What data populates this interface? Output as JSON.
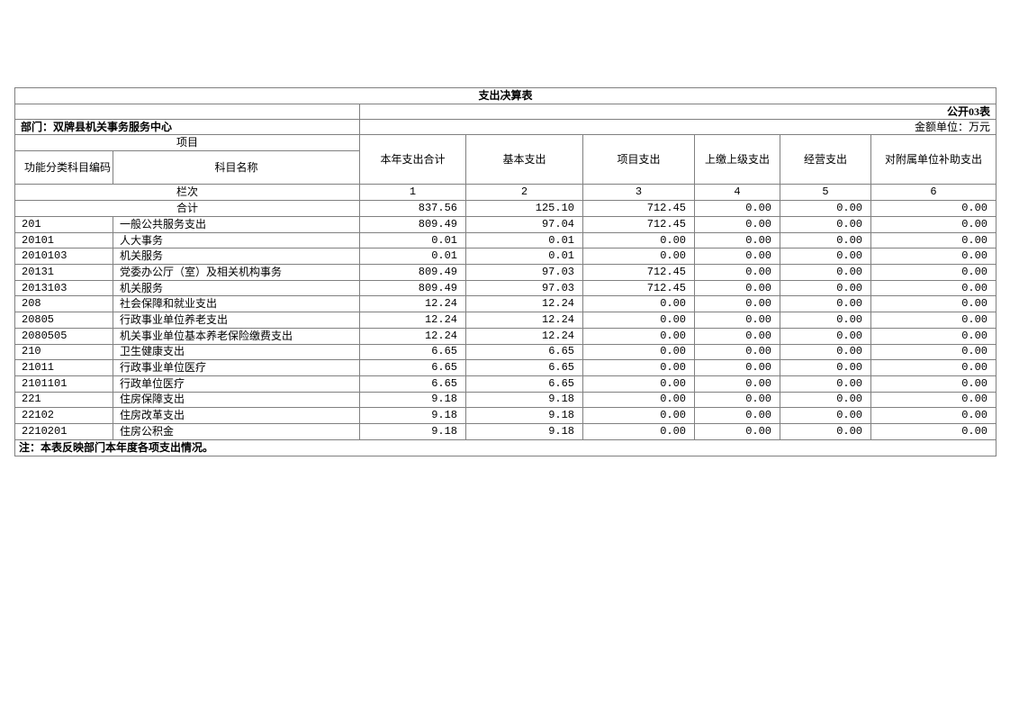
{
  "table": {
    "title": "支出决算表",
    "form_code": "公开03表",
    "department_label": "部门：双牌县机关事务服务中心",
    "unit_label": "金额单位：万元",
    "header": {
      "project_group": "项目",
      "code_col": "功能分类科目编码",
      "name_col": "科目名称",
      "value_cols": [
        "本年支出合计",
        "基本支出",
        "项目支出",
        "上缴上级支出",
        "经营支出",
        "对附属单位补助支出"
      ]
    },
    "column_index_row": {
      "label": "栏次",
      "indexes": [
        "1",
        "2",
        "3",
        "4",
        "5",
        "6"
      ]
    },
    "total_row": {
      "label": "合计",
      "values": [
        "837.56",
        "125.10",
        "712.45",
        "0.00",
        "0.00",
        "0.00"
      ]
    },
    "rows": [
      {
        "code": "201",
        "name": "一般公共服务支出",
        "values": [
          "809.49",
          "97.04",
          "712.45",
          "0.00",
          "0.00",
          "0.00"
        ]
      },
      {
        "code": "20101",
        "name": "人大事务",
        "values": [
          "0.01",
          "0.01",
          "0.00",
          "0.00",
          "0.00",
          "0.00"
        ]
      },
      {
        "code": "2010103",
        "name": "机关服务",
        "values": [
          "0.01",
          "0.01",
          "0.00",
          "0.00",
          "0.00",
          "0.00"
        ]
      },
      {
        "code": "20131",
        "name": "党委办公厅（室）及相关机构事务",
        "values": [
          "809.49",
          "97.03",
          "712.45",
          "0.00",
          "0.00",
          "0.00"
        ]
      },
      {
        "code": "2013103",
        "name": "机关服务",
        "values": [
          "809.49",
          "97.03",
          "712.45",
          "0.00",
          "0.00",
          "0.00"
        ]
      },
      {
        "code": "208",
        "name": "社会保障和就业支出",
        "values": [
          "12.24",
          "12.24",
          "0.00",
          "0.00",
          "0.00",
          "0.00"
        ]
      },
      {
        "code": "20805",
        "name": "行政事业单位养老支出",
        "values": [
          "12.24",
          "12.24",
          "0.00",
          "0.00",
          "0.00",
          "0.00"
        ]
      },
      {
        "code": "2080505",
        "name": "机关事业单位基本养老保险缴费支出",
        "values": [
          "12.24",
          "12.24",
          "0.00",
          "0.00",
          "0.00",
          "0.00"
        ]
      },
      {
        "code": "210",
        "name": "卫生健康支出",
        "values": [
          "6.65",
          "6.65",
          "0.00",
          "0.00",
          "0.00",
          "0.00"
        ]
      },
      {
        "code": "21011",
        "name": "行政事业单位医疗",
        "values": [
          "6.65",
          "6.65",
          "0.00",
          "0.00",
          "0.00",
          "0.00"
        ]
      },
      {
        "code": "2101101",
        "name": "行政单位医疗",
        "values": [
          "6.65",
          "6.65",
          "0.00",
          "0.00",
          "0.00",
          "0.00"
        ]
      },
      {
        "code": "221",
        "name": "住房保障支出",
        "values": [
          "9.18",
          "9.18",
          "0.00",
          "0.00",
          "0.00",
          "0.00"
        ]
      },
      {
        "code": "22102",
        "name": "住房改革支出",
        "values": [
          "9.18",
          "9.18",
          "0.00",
          "0.00",
          "0.00",
          "0.00"
        ]
      },
      {
        "code": "2210201",
        "name": "住房公积金",
        "values": [
          "9.18",
          "9.18",
          "0.00",
          "0.00",
          "0.00",
          "0.00"
        ]
      }
    ],
    "note": "注：本表反映部门本年度各项支出情况。"
  }
}
